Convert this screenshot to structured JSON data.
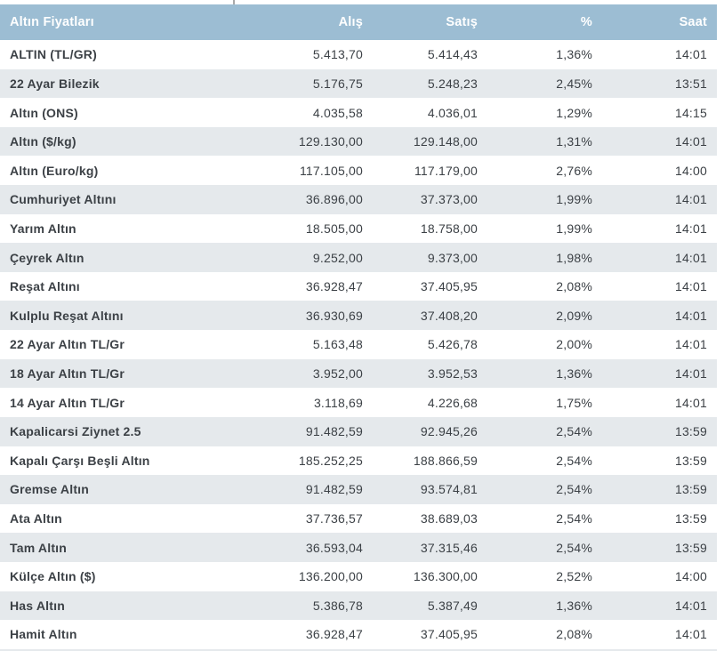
{
  "colors": {
    "header_bg": "#9cbdd3",
    "header_text": "#ffffff",
    "stripe_bg": "#e5e9ec",
    "row_bg": "#ffffff",
    "text": "#3c4146",
    "tick": "#a9a9a9"
  },
  "chart_data": {
    "type": "table",
    "title": "Altın Fiyatları",
    "columns": [
      "Altın Fiyatları",
      "Alış",
      "Satış",
      "%",
      "Saat"
    ],
    "rows": [
      [
        "ALTIN (TL/GR)",
        "5.413,70",
        "5.414,43",
        "1,36%",
        "14:01"
      ],
      [
        "22 Ayar Bilezik",
        "5.176,75",
        "5.248,23",
        "2,45%",
        "13:51"
      ],
      [
        "Altın (ONS)",
        "4.035,58",
        "4.036,01",
        "1,29%",
        "14:15"
      ],
      [
        "Altın ($/kg)",
        "129.130,00",
        "129.148,00",
        "1,31%",
        "14:01"
      ],
      [
        "Altın (Euro/kg)",
        "117.105,00",
        "117.179,00",
        "2,76%",
        "14:00"
      ],
      [
        "Cumhuriyet Altını",
        "36.896,00",
        "37.373,00",
        "1,99%",
        "14:01"
      ],
      [
        "Yarım Altın",
        "18.505,00",
        "18.758,00",
        "1,99%",
        "14:01"
      ],
      [
        "Çeyrek Altın",
        "9.252,00",
        "9.373,00",
        "1,98%",
        "14:01"
      ],
      [
        "Reşat Altını",
        "36.928,47",
        "37.405,95",
        "2,08%",
        "14:01"
      ],
      [
        "Kulplu Reşat Altını",
        "36.930,69",
        "37.408,20",
        "2,09%",
        "14:01"
      ],
      [
        "22 Ayar Altın TL/Gr",
        "5.163,48",
        "5.426,78",
        "2,00%",
        "14:01"
      ],
      [
        "18 Ayar Altın TL/Gr",
        "3.952,00",
        "3.952,53",
        "1,36%",
        "14:01"
      ],
      [
        "14 Ayar Altın TL/Gr",
        "3.118,69",
        "4.226,68",
        "1,75%",
        "14:01"
      ],
      [
        "Kapalicarsi Ziynet 2.5",
        "91.482,59",
        "92.945,26",
        "2,54%",
        "13:59"
      ],
      [
        "Kapalı Çarşı Beşli Altın",
        "185.252,25",
        "188.866,59",
        "2,54%",
        "13:59"
      ],
      [
        "Gremse Altın",
        "91.482,59",
        "93.574,81",
        "2,54%",
        "13:59"
      ],
      [
        "Ata Altın",
        "37.736,57",
        "38.689,03",
        "2,54%",
        "13:59"
      ],
      [
        "Tam Altın",
        "36.593,04",
        "37.315,46",
        "2,54%",
        "13:59"
      ],
      [
        "Külçe Altın ($)",
        "136.200,00",
        "136.300,00",
        "2,52%",
        "14:00"
      ],
      [
        "Has Altın",
        "5.386,78",
        "5.387,49",
        "1,36%",
        "14:01"
      ],
      [
        "Hamit Altın",
        "36.928,47",
        "37.405,95",
        "2,08%",
        "14:01"
      ]
    ]
  }
}
